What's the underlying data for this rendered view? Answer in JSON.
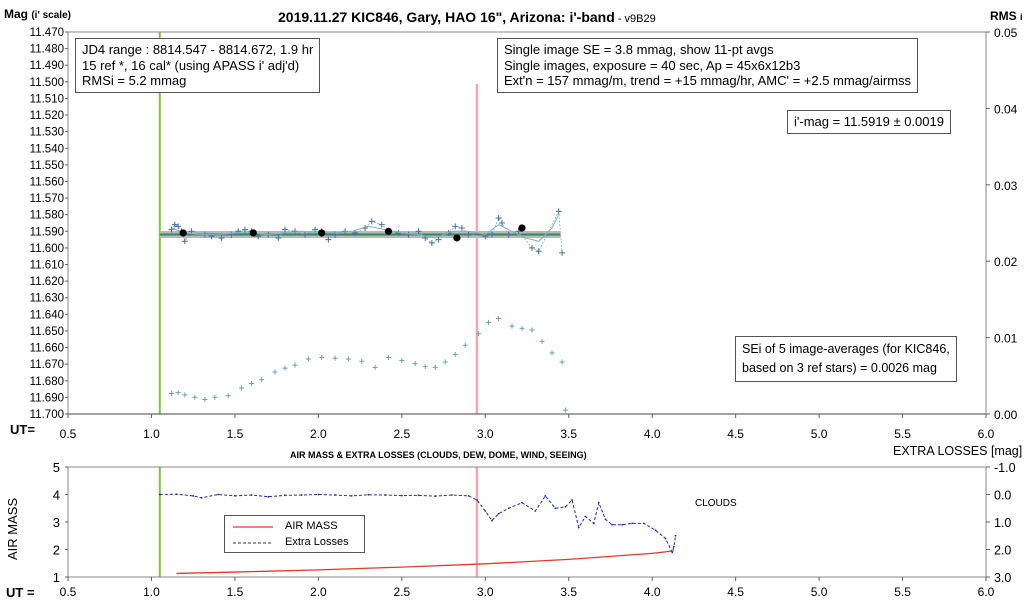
{
  "title": "2019.11.27 KIC846, Gary, HAO 16\", Arizona: i'-band",
  "version": "- v9B29",
  "left_axis_title": "Mag",
  "left_axis_sub": "(i' scale)",
  "right_axis_title": "RMS",
  "right_axis_sub": "i",
  "ut_label_top": "UT=",
  "ut_label_bottom": "UT =",
  "info_left": [
    "JD4 range : 8814.547 - 8814.672, 1.9  hr",
    "15 ref *, 16 cal* (using APASS i' adj'd)",
    "RMSi = 5.2 mmag"
  ],
  "info_right": [
    "Single image SE = 3.8 mmag, show 11-pt avgs",
    "Single images, exposure = 40 sec, Ap = 45x6x12b3",
    "Ext'n = 157 mmag/m, trend = +15 mmag/hr, AMC' = +2.5 mmag/airmss"
  ],
  "result": "i'-mag = 11.5919 ± 0.0019",
  "sei_note": [
    "SEi of 5 image-averages (for KIC846,",
    "based on 3 ref stars) = 0.0026 mag"
  ],
  "lower_title": "AIR MASS & EXTRA LOSSES (CLOUDS, DEW, DOME, WIND, SEEING)",
  "lower_left_axis": "AIR MASS",
  "lower_right_axis": "EXTRA LOSSES [mag]",
  "clouds_label": "CLOUDS",
  "legend": [
    "AIR MASS",
    "Extra Losses"
  ],
  "colors": {
    "observed": "#4a6fa5",
    "running_avg": "#7fb1c4",
    "trend": "#2e8b57",
    "band": "#b8b8b8",
    "rms": "#6aa3b3",
    "marker_green": "#7dc242",
    "marker_pink": "#f4a6b4",
    "airmass": "#e23b2a",
    "extra": "#1a2fb0"
  },
  "chart_data": [
    {
      "type": "scatter",
      "title": "2019.11.27 KIC846, Gary, HAO 16\", Arizona: i'-band",
      "xlabel": "UT=",
      "ylabel": "Mag (i' scale)",
      "y2label": "RMS i",
      "xlim": [
        0.5,
        6.0
      ],
      "ylim": [
        11.47,
        11.7
      ],
      "y_inverted": true,
      "y2lim": [
        0.0,
        0.05
      ],
      "xticks": [
        "0.5",
        "1.0",
        "1.5",
        "2.0",
        "2.5",
        "3.0",
        "3.5",
        "4.0",
        "4.5",
        "5.0",
        "5.5",
        "6.0"
      ],
      "yticks": [
        "11.470",
        "11.480",
        "11.490",
        "11.500",
        "11.510",
        "11.520",
        "11.530",
        "11.540",
        "11.550",
        "11.560",
        "11.570",
        "11.580",
        "11.590",
        "11.600",
        "11.610",
        "11.620",
        "11.630",
        "11.640",
        "11.650",
        "11.660",
        "11.670",
        "11.680",
        "11.690",
        "11.700"
      ],
      "y2ticks": [
        "0.05",
        "0.04",
        "0.03",
        "0.02",
        "0.01",
        "0.00"
      ],
      "vlines": [
        1.05,
        2.95
      ],
      "trend": {
        "x": [
          1.05,
          3.45
        ],
        "y": [
          11.5919,
          11.5919
        ]
      },
      "series": [
        {
          "values": [
            [
              1.12,
              11.589
            ],
            [
              1.14,
              11.586
            ],
            [
              1.16,
              11.587
            ],
            [
              1.18,
              11.59
            ],
            [
              1.2,
              11.596
            ],
            [
              1.24,
              11.59
            ],
            [
              1.32,
              11.592
            ],
            [
              1.36,
              11.593
            ],
            [
              1.42,
              11.594
            ],
            [
              1.48,
              11.592
            ],
            [
              1.52,
              11.59
            ],
            [
              1.56,
              11.589
            ],
            [
              1.6,
              11.59
            ],
            [
              1.64,
              11.593
            ],
            [
              1.7,
              11.592
            ],
            [
              1.76,
              11.594
            ],
            [
              1.8,
              11.589
            ],
            [
              1.86,
              11.59
            ],
            [
              1.92,
              11.592
            ],
            [
              1.98,
              11.589
            ],
            [
              2.02,
              11.59
            ],
            [
              2.06,
              11.595
            ],
            [
              2.1,
              11.592
            ],
            [
              2.16,
              11.59
            ],
            [
              2.22,
              11.591
            ],
            [
              2.28,
              11.588
            ],
            [
              2.32,
              11.584
            ],
            [
              2.38,
              11.586
            ],
            [
              2.42,
              11.59
            ],
            [
              2.48,
              11.591
            ],
            [
              2.54,
              11.592
            ],
            [
              2.6,
              11.59
            ],
            [
              2.64,
              11.594
            ],
            [
              2.68,
              11.597
            ],
            [
              2.72,
              11.595
            ],
            [
              2.78,
              11.591
            ],
            [
              2.82,
              11.587
            ],
            [
              2.86,
              11.588
            ],
            [
              2.9,
              11.592
            ],
            [
              3.0,
              11.593
            ],
            [
              3.04,
              11.592
            ],
            [
              3.08,
              11.582
            ],
            [
              3.1,
              11.585
            ],
            [
              3.14,
              11.592
            ],
            [
              3.2,
              11.59
            ],
            [
              3.28,
              11.6
            ],
            [
              3.32,
              11.602
            ],
            [
              3.44,
              11.578
            ],
            [
              3.46,
              11.603
            ]
          ]
        },
        {
          "values": [
            [
              1.12,
              11.588
            ],
            [
              1.2,
              11.591
            ],
            [
              1.3,
              11.592
            ],
            [
              1.4,
              11.592
            ],
            [
              1.5,
              11.591
            ],
            [
              1.6,
              11.591
            ],
            [
              1.7,
              11.592
            ],
            [
              1.8,
              11.591
            ],
            [
              1.9,
              11.59
            ],
            [
              2.0,
              11.591
            ],
            [
              2.1,
              11.591
            ],
            [
              2.2,
              11.59
            ],
            [
              2.3,
              11.587
            ],
            [
              2.4,
              11.589
            ],
            [
              2.5,
              11.591
            ],
            [
              2.6,
              11.592
            ],
            [
              2.7,
              11.594
            ],
            [
              2.8,
              11.59
            ],
            [
              2.9,
              11.59
            ],
            [
              3.0,
              11.592
            ],
            [
              3.08,
              11.586
            ],
            [
              3.16,
              11.59
            ],
            [
              3.24,
              11.594
            ],
            [
              3.32,
              11.596
            ],
            [
              3.4,
              11.588
            ],
            [
              3.44,
              11.58
            ]
          ]
        },
        {
          "values": [
            [
              1.19,
              11.591
            ],
            [
              1.61,
              11.591
            ],
            [
              2.02,
              11.591
            ],
            [
              2.42,
              11.59
            ],
            [
              2.83,
              11.594
            ],
            [
              3.22,
              11.588
            ]
          ]
        },
        {
          "values": [
            [
              1.12,
              0.0027
            ],
            [
              1.16,
              0.0028
            ],
            [
              1.2,
              0.0025
            ],
            [
              1.26,
              0.0022
            ],
            [
              1.32,
              0.0019
            ],
            [
              1.38,
              0.0022
            ],
            [
              1.46,
              0.0024
            ],
            [
              1.54,
              0.0034
            ],
            [
              1.6,
              0.004
            ],
            [
              1.66,
              0.0045
            ],
            [
              1.74,
              0.0055
            ],
            [
              1.8,
              0.006
            ],
            [
              1.86,
              0.0064
            ],
            [
              1.94,
              0.0072
            ],
            [
              2.02,
              0.0074
            ],
            [
              2.1,
              0.0073
            ],
            [
              2.18,
              0.0072
            ],
            [
              2.26,
              0.0069
            ],
            [
              2.34,
              0.0061
            ],
            [
              2.42,
              0.0074
            ],
            [
              2.5,
              0.007
            ],
            [
              2.58,
              0.0066
            ],
            [
              2.64,
              0.0062
            ],
            [
              2.7,
              0.0061
            ],
            [
              2.76,
              0.0068
            ],
            [
              2.82,
              0.0078
            ],
            [
              2.88,
              0.009
            ],
            [
              2.96,
              0.0105
            ],
            [
              3.02,
              0.012
            ],
            [
              3.08,
              0.0125
            ],
            [
              3.16,
              0.0115
            ],
            [
              3.22,
              0.0112
            ],
            [
              3.28,
              0.011
            ],
            [
              3.34,
              0.0095
            ],
            [
              3.4,
              0.008
            ],
            [
              3.46,
              0.0068
            ],
            [
              3.48,
              0.0005
            ]
          ]
        }
      ]
    },
    {
      "type": "line",
      "title": "AIR MASS & EXTRA LOSSES (CLOUDS, DEW, DOME, WIND, SEEING)",
      "xlabel": "UT =",
      "ylabel": "AIR MASS",
      "y2label": "EXTRA LOSSES [mag]",
      "xlim": [
        0.5,
        6.0
      ],
      "ylim": [
        1,
        5
      ],
      "y2lim": [
        -1.0,
        3.0
      ],
      "y2_inverted": true,
      "xticks": [
        "0.5",
        "1.0",
        "1.5",
        "2.0",
        "2.5",
        "3.0",
        "3.5",
        "4.0",
        "4.5",
        "5.0",
        "5.5",
        "6.0"
      ],
      "yticks": [
        "5",
        "4",
        "3",
        "2",
        "1"
      ],
      "y2ticks": [
        "-1.0",
        "0.0",
        "1.0",
        "2.0",
        "3.0"
      ],
      "vlines": [
        1.05,
        2.95
      ],
      "series": [
        {
          "name": "AIR MASS",
          "x": [
            1.15,
            1.5,
            2.0,
            2.5,
            3.0,
            3.5,
            4.0,
            4.13
          ],
          "values": [
            1.13,
            1.18,
            1.26,
            1.36,
            1.48,
            1.64,
            1.86,
            1.95
          ]
        },
        {
          "name": "Extra Losses",
          "x": [
            1.05,
            1.15,
            1.25,
            1.3,
            1.4,
            1.5,
            1.6,
            1.7,
            1.8,
            1.9,
            2.0,
            2.1,
            2.2,
            2.3,
            2.4,
            2.5,
            2.6,
            2.7,
            2.8,
            2.9,
            2.95,
            3.0,
            3.04,
            3.08,
            3.14,
            3.22,
            3.3,
            3.36,
            3.42,
            3.48,
            3.52,
            3.56,
            3.6,
            3.65,
            3.68,
            3.72,
            3.76,
            3.82,
            3.88,
            3.95,
            4.02,
            4.08,
            4.12,
            4.13,
            4.14
          ],
          "values": [
            0.0,
            -0.01,
            0.05,
            0.12,
            0.0,
            0.05,
            0.02,
            0.08,
            0.03,
            0.02,
            0.0,
            0.02,
            0.05,
            0.01,
            0.02,
            0.04,
            0.03,
            0.06,
            0.02,
            0.05,
            0.2,
            0.6,
            0.95,
            0.7,
            0.5,
            0.3,
            0.6,
            0.05,
            0.5,
            0.45,
            0.2,
            1.2,
            0.8,
            1.05,
            0.3,
            0.9,
            1.1,
            1.1,
            1.05,
            1.05,
            1.3,
            1.6,
            2.1,
            1.9,
            1.5
          ]
        }
      ]
    }
  ]
}
